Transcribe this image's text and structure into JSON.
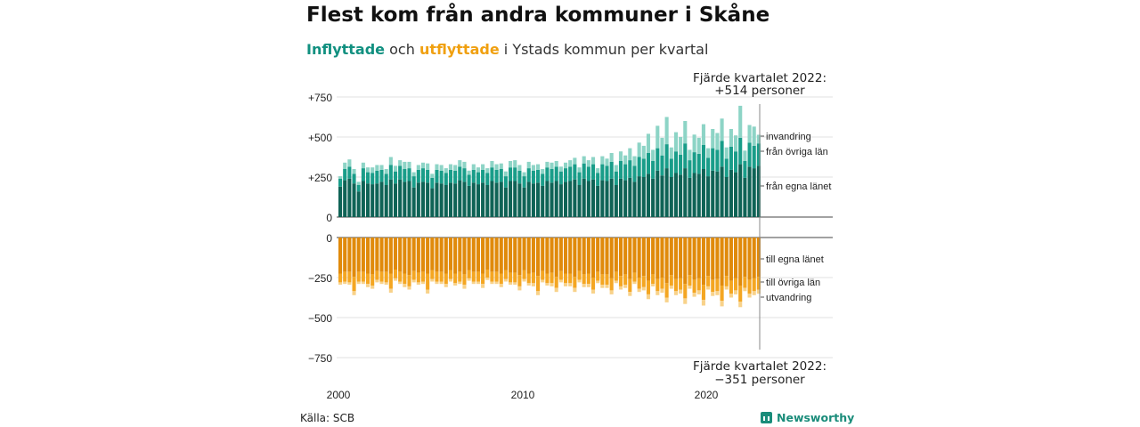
{
  "title": "Flest kom från andra kommuner i Skåne",
  "subtitle": {
    "in_word": "Inflyttade",
    "and_word": "och",
    "out_word": "utflyttade",
    "rest": "i Ystads kommun per kvartal"
  },
  "source": "Källa: SCB",
  "brand": "Newsworthy",
  "colors": {
    "in_egna": "#0f6356",
    "in_ovriga": "#199d89",
    "in_invandring": "#8dd4c6",
    "out_egna": "#e08a0b",
    "out_ovriga": "#f4a622",
    "out_utvandring": "#f8d28a"
  },
  "chart_data": {
    "type": "bar",
    "stacked": true,
    "x_start": "2000 Q1",
    "x_end": "2022 Q4",
    "xticks": [
      "2000",
      "2010",
      "2020"
    ],
    "yticks_top": [
      "+750",
      "+500",
      "+250",
      "0"
    ],
    "yticks_bottom": [
      "0",
      "−250",
      "−500",
      "−750"
    ],
    "ylim_top": [
      0,
      750
    ],
    "ylim_bottom": [
      -750,
      0
    ],
    "annotation_top": {
      "line1": "Fjärde kvartalet 2022:",
      "line2": "+514 personer"
    },
    "annotation_bottom": {
      "line1": "Fjärde kvartalet 2022:",
      "line2": "−351 personer"
    },
    "series_labels": {
      "invandring": "invandring",
      "fran_ovriga_lan": "från övriga län",
      "fran_egna_lanet": "från egna länet",
      "till_egna_lanet": "till egna länet",
      "till_ovriga_lan": "till övriga län",
      "utvandring": "utvandring"
    },
    "in_series": [
      {
        "name": "från egna länet",
        "values": [
          190,
          230,
          240,
          210,
          160,
          225,
          210,
          205,
          210,
          220,
          200,
          235,
          210,
          235,
          220,
          225,
          185,
          215,
          220,
          215,
          180,
          215,
          210,
          200,
          215,
          210,
          230,
          220,
          195,
          215,
          205,
          215,
          200,
          225,
          215,
          220,
          185,
          225,
          225,
          210,
          185,
          220,
          210,
          215,
          195,
          225,
          215,
          225,
          205,
          220,
          225,
          235,
          200,
          240,
          225,
          235,
          195,
          230,
          225,
          240,
          200,
          240,
          230,
          245,
          220,
          255,
          250,
          270,
          240,
          290,
          260,
          305,
          250,
          275,
          265,
          305,
          245,
          275,
          270,
          300,
          255,
          290,
          285,
          315,
          250,
          295,
          280,
          330,
          245,
          315,
          305,
          320
        ]
      },
      {
        "name": "från övriga län",
        "values": [
          50,
          70,
          75,
          60,
          40,
          80,
          70,
          70,
          80,
          75,
          70,
          90,
          75,
          85,
          80,
          80,
          70,
          80,
          85,
          80,
          65,
          80,
          80,
          75,
          80,
          80,
          85,
          85,
          70,
          80,
          75,
          80,
          75,
          85,
          80,
          80,
          70,
          85,
          85,
          80,
          70,
          85,
          80,
          80,
          75,
          85,
          85,
          90,
          80,
          85,
          90,
          95,
          80,
          95,
          90,
          95,
          80,
          100,
          95,
          105,
          85,
          110,
          100,
          110,
          100,
          120,
          115,
          130,
          110,
          140,
          125,
          150,
          115,
          135,
          125,
          155,
          110,
          130,
          125,
          150,
          115,
          140,
          135,
          160,
          115,
          145,
          130,
          165,
          105,
          150,
          140,
          140
        ]
      },
      {
        "name": "invandring",
        "values": [
          15,
          40,
          45,
          30,
          20,
          35,
          30,
          35,
          35,
          30,
          30,
          50,
          35,
          35,
          45,
          40,
          25,
          30,
          35,
          40,
          25,
          35,
          35,
          30,
          35,
          35,
          40,
          40,
          25,
          35,
          30,
          35,
          30,
          40,
          35,
          35,
          30,
          40,
          45,
          35,
          25,
          40,
          35,
          35,
          30,
          35,
          40,
          35,
          30,
          35,
          40,
          40,
          30,
          45,
          40,
          45,
          30,
          50,
          45,
          55,
          40,
          60,
          55,
          75,
          60,
          90,
          80,
          120,
          70,
          140,
          110,
          170,
          70,
          120,
          110,
          140,
          65,
          110,
          100,
          130,
          60,
          120,
          105,
          140,
          70,
          110,
          100,
          200,
          65,
          110,
          120,
          54
        ]
      }
    ],
    "out_series": [
      {
        "name": "till egna länet",
        "values": [
          225,
          215,
          215,
          245,
          215,
          215,
          225,
          230,
          210,
          215,
          215,
          225,
          200,
          215,
          225,
          235,
          210,
          220,
          215,
          225,
          205,
          215,
          215,
          225,
          205,
          225,
          215,
          230,
          205,
          215,
          215,
          225,
          200,
          215,
          215,
          225,
          205,
          220,
          220,
          235,
          205,
          225,
          220,
          240,
          210,
          225,
          220,
          245,
          210,
          225,
          225,
          245,
          210,
          230,
          225,
          250,
          215,
          230,
          230,
          255,
          215,
          240,
          230,
          260,
          220,
          250,
          240,
          270,
          230,
          260,
          250,
          285,
          235,
          260,
          255,
          290,
          235,
          265,
          255,
          295,
          240,
          265,
          260,
          300,
          240,
          270,
          255,
          300,
          245,
          265,
          255,
          245
        ]
      },
      {
        "name": "till övriga län",
        "values": [
          55,
          60,
          65,
          90,
          60,
          60,
          65,
          70,
          55,
          60,
          65,
          95,
          55,
          60,
          65,
          70,
          55,
          60,
          60,
          100,
          55,
          60,
          60,
          65,
          55,
          60,
          60,
          65,
          50,
          60,
          60,
          65,
          50,
          60,
          60,
          65,
          55,
          60,
          60,
          70,
          55,
          60,
          65,
          95,
          55,
          60,
          65,
          70,
          55,
          60,
          60,
          70,
          55,
          60,
          65,
          75,
          55,
          65,
          65,
          75,
          55,
          65,
          65,
          80,
          55,
          70,
          70,
          85,
          60,
          75,
          70,
          90,
          65,
          75,
          70,
          90,
          65,
          80,
          75,
          95,
          65,
          75,
          75,
          95,
          65,
          80,
          75,
          100,
          70,
          85,
          80,
          80
        ]
      },
      {
        "name": "utvandring",
        "values": [
          15,
          15,
          15,
          25,
          15,
          15,
          20,
          20,
          15,
          15,
          15,
          25,
          15,
          15,
          20,
          20,
          15,
          15,
          15,
          25,
          15,
          15,
          15,
          20,
          15,
          15,
          15,
          25,
          15,
          15,
          15,
          25,
          15,
          15,
          15,
          20,
          15,
          15,
          15,
          25,
          15,
          15,
          20,
          25,
          15,
          15,
          20,
          25,
          15,
          20,
          20,
          25,
          15,
          20,
          20,
          25,
          15,
          20,
          20,
          25,
          15,
          20,
          20,
          25,
          15,
          20,
          20,
          30,
          15,
          25,
          25,
          30,
          20,
          25,
          25,
          35,
          20,
          25,
          25,
          35,
          20,
          25,
          25,
          35,
          20,
          25,
          25,
          35,
          20,
          25,
          25,
          26
        ]
      }
    ]
  }
}
